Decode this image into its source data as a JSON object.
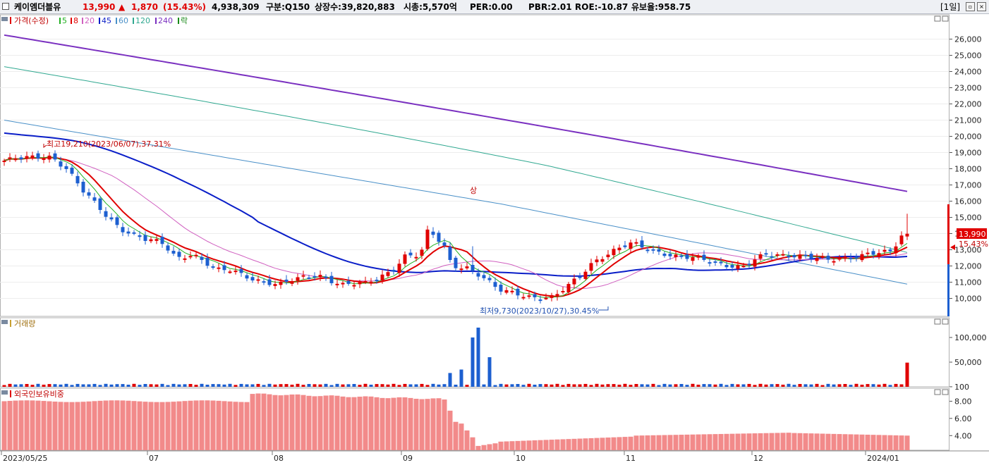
{
  "header": {
    "icon": "window-icon",
    "name": "케이엠더블유",
    "price": "13,990",
    "change_arrow": "▲",
    "change": "1,870",
    "change_pct": "(15.43%)",
    "volume": "4,938,309",
    "market": "구분:Q150",
    "shares": "상장수:39,820,883",
    "market_cap": "시총:5,570억",
    "per": "PER:0.00",
    "pbr": "PBR:2.01",
    "roe": "ROE:-10.87",
    "retention": "유보율:958.75",
    "period": "[1일]"
  },
  "colors": {
    "up": "#e00000",
    "down": "#1c5fd0",
    "ma5": "#22b022",
    "ma8": "#e00000",
    "ma20": "#d060c0",
    "ma45": "#0a1ec8",
    "ma60": "#4a90c8",
    "ma120": "#30a890",
    "ma240": "#7a30c0",
    "foreign": "#f28a8a"
  },
  "price_panel": {
    "legend_price": "가격(수정)",
    "legend_ma": [
      "5",
      "8",
      "20",
      "45",
      "60",
      "120",
      "240"
    ],
    "legend_tail": "락",
    "high_label": "최고19,210(2023/06/07),37.31%",
    "low_label": "최저9,730(2023/10/27),30.45%",
    "spike_label": "상",
    "current_label": "13,990",
    "current_pct": "15.43%"
  },
  "volume_panel": {
    "legend": "거래량"
  },
  "foreign_panel": {
    "legend": "외국인보유비중"
  },
  "chart_data": [
    {
      "type": "candlestick",
      "y_ticks": [
        "10,000",
        "11,000",
        "12,000",
        "13,000",
        "14,000",
        "15,000",
        "16,000",
        "17,000",
        "18,000",
        "19,000",
        "20,000",
        "21,000",
        "22,000",
        "23,000",
        "24,000",
        "25,000",
        "26,000"
      ],
      "ylim": [
        9300,
        26900
      ],
      "x_ticks": [
        "2023/05/25",
        "07",
        "08",
        "09",
        "10",
        "11",
        "12",
        "2024/01"
      ],
      "annotations": [
        "최고19,210(2023/06/07),37.31%",
        "최저9,730(2023/10/27),30.45%"
      ],
      "last": 13990
    },
    {
      "type": "bar",
      "name": "거래량",
      "y_ticks": [
        "100,000",
        "50,000",
        "100"
      ],
      "peaks": [
        28000,
        35000,
        100000,
        120000,
        60000,
        49000
      ]
    },
    {
      "type": "bar",
      "name": "외국인보유비중",
      "y_ticks": [
        "8.00",
        "6.00",
        "4.00"
      ],
      "ylim": [
        2.3,
        9.5
      ],
      "levels": [
        8.0,
        8.9,
        8.4,
        2.8,
        3.6,
        4.3,
        4.0
      ]
    }
  ]
}
